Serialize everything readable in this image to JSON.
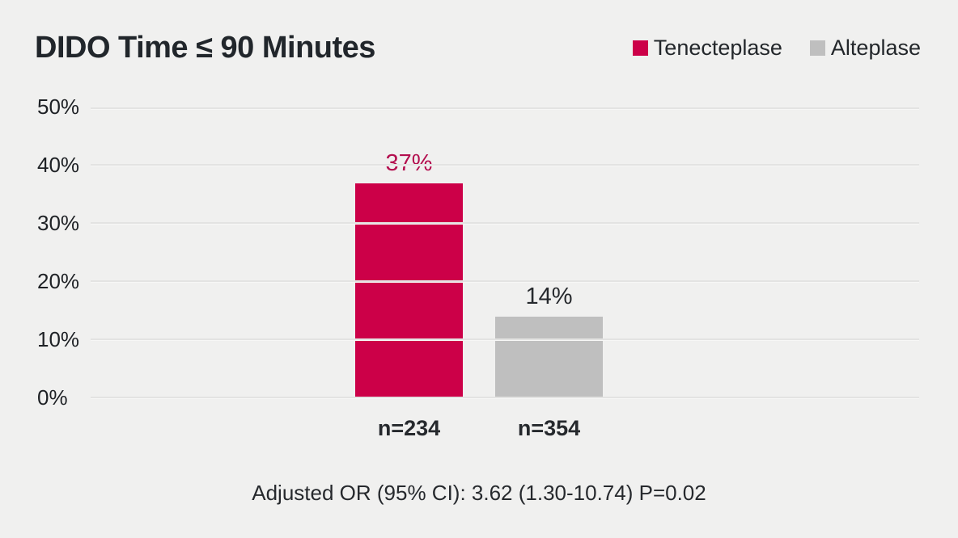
{
  "title": "DIDO Time ≤ 90 Minutes",
  "legend": [
    {
      "label": "Tenecteplase",
      "color": "#cc0048"
    },
    {
      "label": "Alteplase",
      "color": "#bfbfbf"
    }
  ],
  "colors": {
    "background": "#f0f0ef",
    "tenecteplase_bar": "#cc0048",
    "alteplase_bar": "#bfbfbf",
    "tenecteplase_value_label": "#b30e4e",
    "alteplase_value_label": "#26292d",
    "gridline": "#e3e3e2",
    "text": "#22262a"
  },
  "chart_data": {
    "type": "bar",
    "title": "DIDO Time ≤ 90 Minutes",
    "categories": [
      "Tenecteplase",
      "Alteplase"
    ],
    "values": [
      37,
      14
    ],
    "bars": [
      {
        "category": "Tenecteplase",
        "value": 37,
        "value_label": "37%",
        "n_label": "n=234",
        "color": "#cc0048",
        "value_label_color": "#b30e4e"
      },
      {
        "category": "Alteplase",
        "value": 14,
        "value_label": "14%",
        "n_label": "n=354",
        "color": "#bfbfbf",
        "value_label_color": "#26292d"
      }
    ],
    "xlabel": "",
    "ylabel": "",
    "ylim": [
      0,
      50
    ],
    "y_ticks": [
      0,
      10,
      20,
      30,
      40,
      50
    ],
    "y_tick_labels": [
      "0%",
      "10%",
      "20%",
      "30%",
      "40%",
      "50%"
    ],
    "grid": true,
    "legend_position": "top-right",
    "annotation": "Adjusted OR (95% CI): 3.62 (1.30-10.74) P=0.02"
  }
}
